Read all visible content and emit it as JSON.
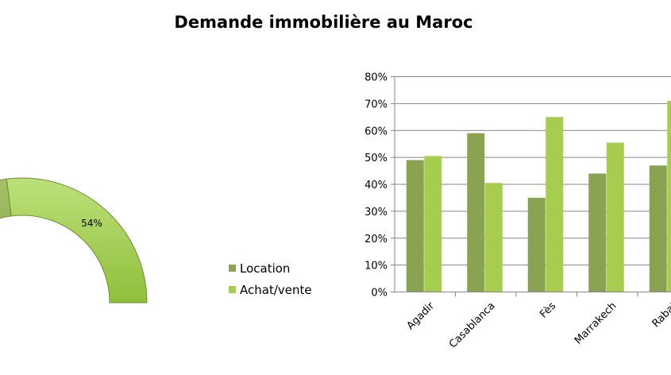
{
  "title": "Demande immobilière au Maroc",
  "colors": {
    "location": "#8aa350",
    "achat": "#a7cd4e",
    "grid": "#868686",
    "axis": "#868686"
  },
  "chart_data": [
    {
      "type": "pie",
      "variant": "donut",
      "slices": [
        {
          "name": "Location",
          "value": 46
        },
        {
          "name": "Achat/vente",
          "value": 54,
          "label": "54%"
        }
      ]
    },
    {
      "type": "bar",
      "title": "",
      "xlabel": "",
      "ylabel": "",
      "categories": [
        "Agadir",
        "Casablanca",
        "Fès",
        "Marrakech",
        "Rabat"
      ],
      "series": [
        {
          "name": "Location",
          "values": [
            49,
            59,
            35,
            44,
            47
          ]
        },
        {
          "name": "Achat/vente",
          "values": [
            50.5,
            40.5,
            65,
            55.5,
            71
          ]
        }
      ],
      "ylim": [
        0,
        80
      ],
      "ytick_labels": [
        "0%",
        "10%",
        "20%",
        "30%",
        "40%",
        "50%",
        "60%",
        "70%",
        "80%"
      ],
      "grid": true,
      "legend": "left"
    }
  ],
  "legend": {
    "items": [
      "Location",
      "Achat/vente"
    ]
  }
}
